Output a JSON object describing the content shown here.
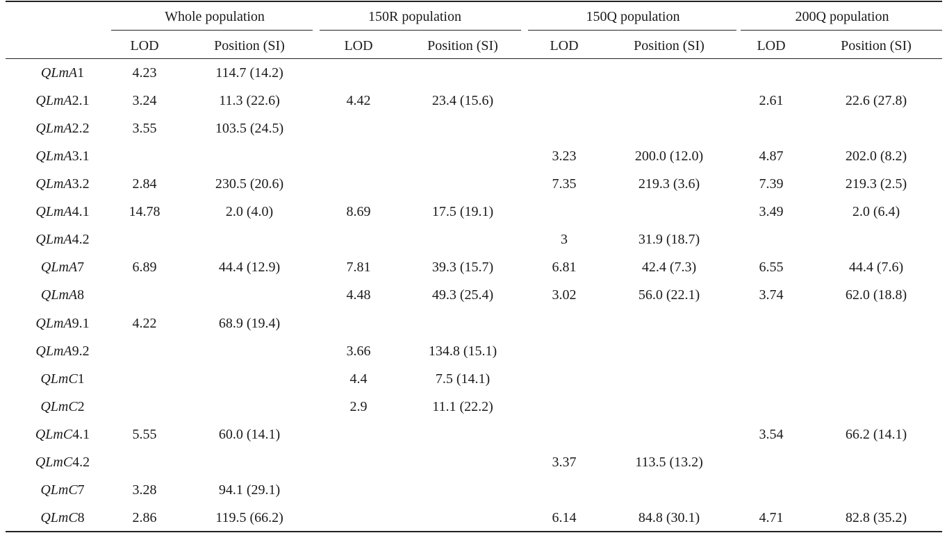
{
  "headers": {
    "groups": [
      "Whole population",
      "150R population",
      "150Q population",
      "200Q population"
    ],
    "sub": [
      "LOD",
      "Position (SI)",
      "LOD",
      "Position (SI)",
      "LOD",
      "Position (SI)",
      "LOD",
      "Position (SI)"
    ]
  },
  "rows": [
    {
      "prefix": "QLm",
      "genome": "A",
      "suffix": "1",
      "cells": [
        "4.23",
        "114.7 (14.2)",
        "",
        "",
        "",
        "",
        "",
        ""
      ]
    },
    {
      "prefix": "QLm",
      "genome": "A",
      "suffix": "2.1",
      "cells": [
        "3.24",
        "11.3 (22.6)",
        "4.42",
        "23.4 (15.6)",
        "",
        "",
        "2.61",
        "22.6 (27.8)"
      ]
    },
    {
      "prefix": "QLm",
      "genome": "A",
      "suffix": "2.2",
      "cells": [
        "3.55",
        "103.5 (24.5)",
        "",
        "",
        "",
        "",
        "",
        ""
      ]
    },
    {
      "prefix": "QLm",
      "genome": "A",
      "suffix": "3.1",
      "cells": [
        "",
        "",
        "",
        "",
        "3.23",
        "200.0 (12.0)",
        "4.87",
        "202.0 (8.2)"
      ]
    },
    {
      "prefix": "QLm",
      "genome": "A",
      "suffix": "3.2",
      "cells": [
        "2.84",
        "230.5 (20.6)",
        "",
        "",
        "7.35",
        "219.3 (3.6)",
        "7.39",
        "219.3 (2.5)"
      ]
    },
    {
      "prefix": "QLm",
      "genome": "A",
      "suffix": "4.1",
      "cells": [
        "14.78",
        "2.0 (4.0)",
        "8.69",
        "17.5 (19.1)",
        "",
        "",
        "3.49",
        "2.0 (6.4)"
      ]
    },
    {
      "prefix": "QLm",
      "genome": "A",
      "suffix": "4.2",
      "cells": [
        "",
        "",
        "",
        "",
        "3",
        "31.9 (18.7)",
        "",
        ""
      ]
    },
    {
      "prefix": "QLm",
      "genome": "A",
      "suffix": "7",
      "cells": [
        "6.89",
        "44.4 (12.9)",
        "7.81",
        "39.3 (15.7)",
        "6.81",
        "42.4 (7.3)",
        "6.55",
        "44.4 (7.6)"
      ]
    },
    {
      "prefix": "QLm",
      "genome": "A",
      "suffix": "8",
      "cells": [
        "",
        "",
        "4.48",
        "49.3 (25.4)",
        "3.02",
        "56.0 (22.1)",
        "3.74",
        "62.0 (18.8)"
      ]
    },
    {
      "prefix": "QLm",
      "genome": "A",
      "suffix": "9.1",
      "cells": [
        "4.22",
        "68.9 (19.4)",
        "",
        "",
        "",
        "",
        "",
        ""
      ]
    },
    {
      "prefix": "QLm",
      "genome": "A",
      "suffix": "9.2",
      "cells": [
        "",
        "",
        "3.66",
        "134.8 (15.1)",
        "",
        "",
        "",
        ""
      ]
    },
    {
      "prefix": "QLm",
      "genome": "C",
      "suffix": "1",
      "cells": [
        "",
        "",
        "4.4",
        "7.5 (14.1)",
        "",
        "",
        "",
        ""
      ]
    },
    {
      "prefix": "QLm",
      "genome": "C",
      "suffix": "2",
      "cells": [
        "",
        "",
        "2.9",
        "11.1 (22.2)",
        "",
        "",
        "",
        ""
      ]
    },
    {
      "prefix": "QLm",
      "genome": "C",
      "suffix": "4.1",
      "cells": [
        "5.55",
        "60.0 (14.1)",
        "",
        "",
        "",
        "",
        "3.54",
        "66.2 (14.1)"
      ]
    },
    {
      "prefix": "QLm",
      "genome": "C",
      "suffix": "4.2",
      "cells": [
        "",
        "",
        "",
        "",
        "3.37",
        "113.5 (13.2)",
        "",
        ""
      ]
    },
    {
      "prefix": "QLm",
      "genome": "C",
      "suffix": "7",
      "cells": [
        "3.28",
        "94.1 (29.1)",
        "",
        "",
        "",
        "",
        "",
        ""
      ]
    },
    {
      "prefix": "QLm",
      "genome": "C",
      "suffix": "8",
      "cells": [
        "2.86",
        "119.5 (66.2)",
        "",
        "",
        "6.14",
        "84.8 (30.1)",
        "4.71",
        "82.8 (35.2)"
      ]
    }
  ]
}
